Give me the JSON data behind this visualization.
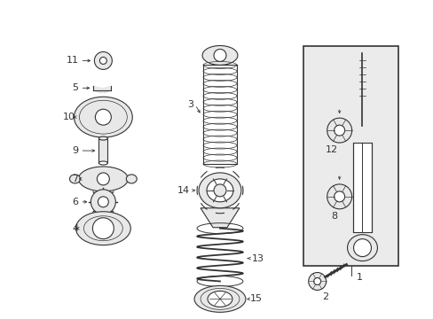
{
  "bg_color": "#ffffff",
  "fig_width": 4.89,
  "fig_height": 3.6,
  "dpi": 100,
  "gray": "#333333",
  "fill_gray": "#e8e8e8",
  "box_fill": "#e8e8e8"
}
